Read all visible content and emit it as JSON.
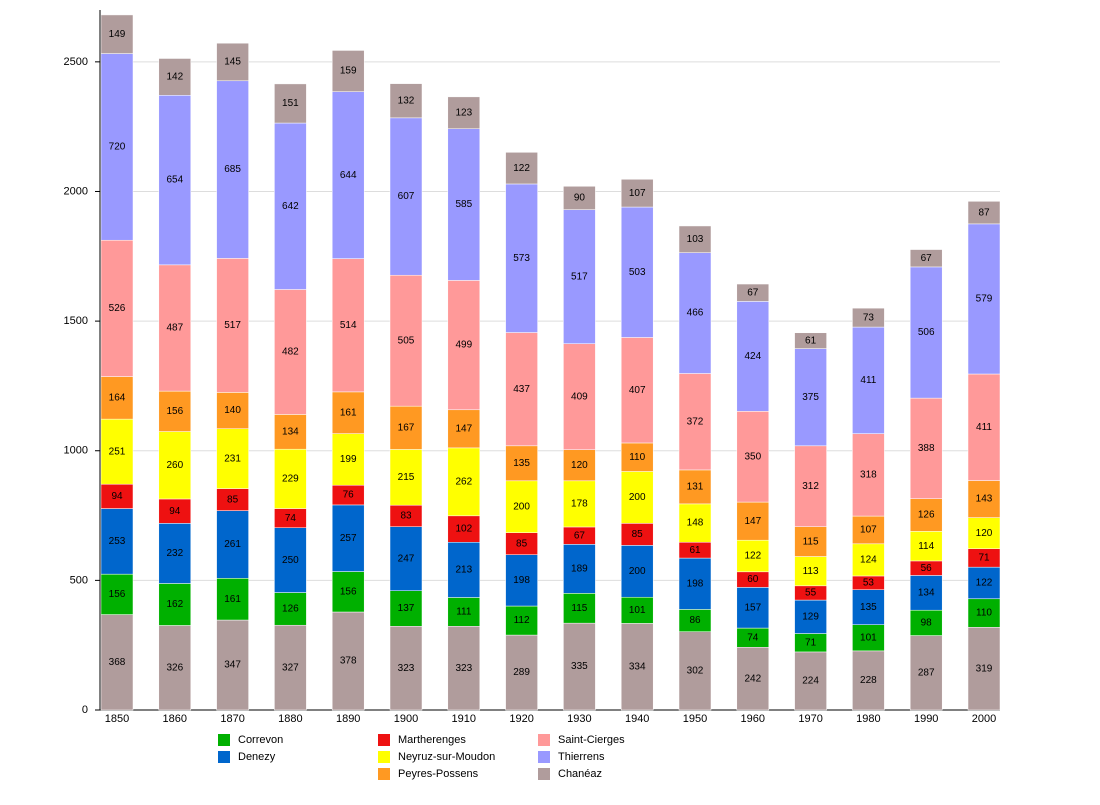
{
  "chart_data": {
    "type": "stacked_bar",
    "categories": [
      "1850",
      "1860",
      "1870",
      "1880",
      "1890",
      "1900",
      "1910",
      "1920",
      "1930",
      "1940",
      "1950",
      "1960",
      "1970",
      "1980",
      "1990",
      "2000"
    ],
    "ylim": [
      0,
      2700
    ],
    "yticks": [
      0,
      500,
      1000,
      1500,
      2000,
      2500
    ],
    "grid": true,
    "series": [
      {
        "color": "#b09c9c",
        "values": [
          368,
          326,
          347,
          327,
          378,
          323,
          323,
          289,
          335,
          334,
          302,
          242,
          224,
          228,
          287,
          319
        ]
      },
      {
        "name": "Correvon",
        "color": "#00b000",
        "values": [
          156,
          162,
          161,
          126,
          156,
          137,
          111,
          112,
          115,
          101,
          86,
          74,
          71,
          101,
          98,
          110
        ]
      },
      {
        "name": "Denezy",
        "color": "#0066cc",
        "values": [
          253,
          232,
          261,
          250,
          257,
          247,
          213,
          198,
          189,
          200,
          198,
          157,
          129,
          135,
          134,
          122
        ]
      },
      {
        "name": "Martherenges",
        "color": "#ee1111",
        "values": [
          94,
          94,
          85,
          74,
          76,
          83,
          102,
          85,
          67,
          85,
          61,
          60,
          55,
          53,
          56,
          71
        ]
      },
      {
        "name": "Neyruz-sur-Moudon",
        "color": "#ffff00",
        "values": [
          251,
          260,
          231,
          229,
          199,
          215,
          262,
          200,
          178,
          200,
          148,
          122,
          113,
          124,
          114,
          120
        ]
      },
      {
        "name": "Peyres-Possens",
        "color": "#ff9922",
        "values": [
          164,
          156,
          140,
          134,
          161,
          167,
          147,
          135,
          120,
          110,
          131,
          147,
          115,
          107,
          126,
          143
        ]
      },
      {
        "name": "Saint-Cierges",
        "color": "#ff9999",
        "values": [
          526,
          487,
          517,
          482,
          514,
          505,
          499,
          437,
          409,
          407,
          372,
          350,
          312,
          318,
          388,
          411
        ]
      },
      {
        "name": "Thierrens",
        "color": "#9999ff",
        "values": [
          720,
          654,
          685,
          642,
          644,
          607,
          585,
          573,
          517,
          503,
          466,
          424,
          375,
          411,
          506,
          579
        ]
      },
      {
        "name": "Chanéaz",
        "color": "#b09c9c",
        "values": [
          149,
          142,
          145,
          151,
          159,
          132,
          123,
          122,
          90,
          107,
          103,
          67,
          61,
          73,
          67,
          87
        ]
      }
    ]
  }
}
